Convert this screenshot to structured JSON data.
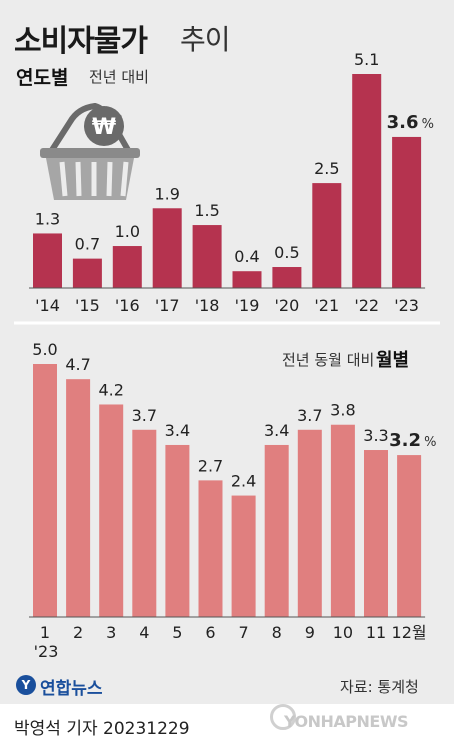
{
  "header": {
    "title": "소비자물가",
    "title_suffix": "추이"
  },
  "annual": {
    "title": "연도별",
    "subtitle": "전년 대비"
  },
  "monthly": {
    "title": "월별",
    "subtitle": "전년 동월 대비"
  },
  "colors": {
    "annual_bar": "#b5334f",
    "monthly_bar": "#e07f7f",
    "background": "#ececec"
  },
  "icons": [
    "won-basket-icon",
    "yonhap-logo-icon",
    "yonhap-news-watermark-icon"
  ],
  "chart_data": [
    {
      "type": "bar",
      "title": "연도별",
      "subtitle": "전년 대비",
      "unit": "%",
      "categories": [
        "'14",
        "'15",
        "'16",
        "'17",
        "'18",
        "'19",
        "'20",
        "'21",
        "'22",
        "'23"
      ],
      "values": [
        1.3,
        0.7,
        1.0,
        1.9,
        1.5,
        0.4,
        0.5,
        2.5,
        5.1,
        3.6
      ],
      "value_labels": [
        "1.3",
        "0.7",
        "1.0",
        "1.9",
        "1.5",
        "0.4",
        "0.5",
        "2.5",
        "5.1",
        "3.6"
      ],
      "highlight_index": 9,
      "ylim": [
        0,
        5.1
      ],
      "grid": false,
      "legend": "none"
    },
    {
      "type": "bar",
      "title": "월별",
      "subtitle": "전년 동월 대비",
      "unit": "%",
      "categories": [
        "1",
        "2",
        "3",
        "4",
        "5",
        "6",
        "7",
        "8",
        "9",
        "10",
        "11",
        "12월"
      ],
      "year_label": "'23",
      "values": [
        5.0,
        4.7,
        4.2,
        3.7,
        3.4,
        2.7,
        2.4,
        3.4,
        3.7,
        3.8,
        3.3,
        3.2
      ],
      "value_labels": [
        "5.0",
        "4.7",
        "4.2",
        "3.7",
        "3.4",
        "2.7",
        "2.4",
        "3.4",
        "3.7",
        "3.8",
        "3.3",
        "3.2"
      ],
      "highlight_index": 11,
      "ylim": [
        0,
        5.0
      ],
      "grid": false,
      "legend": "none"
    }
  ],
  "footer": {
    "logo_text": "연합뉴스",
    "logo_mark": "Y",
    "source": "자료: 통계청",
    "byline": "박영석 기자  20231229",
    "watermark": "YONHAPNEWS"
  }
}
